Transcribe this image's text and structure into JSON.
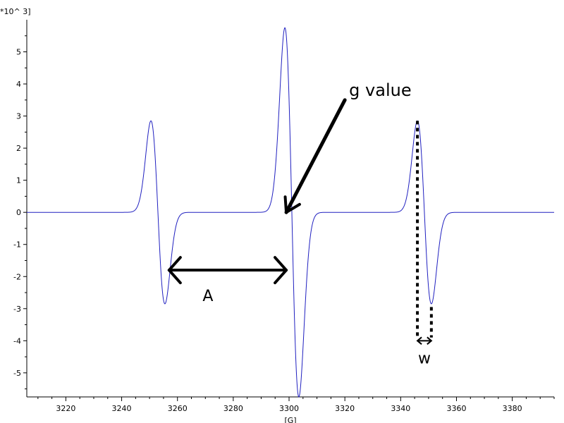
{
  "chart_data": {
    "type": "line",
    "title": "",
    "xlabel": "[G]",
    "ylabel": "",
    "y_multiplier_label": "*10^ 3]",
    "xlim": [
      3206,
      3395
    ],
    "ylim": [
      -5.75,
      6.0
    ],
    "x_ticks": [
      3220,
      3240,
      3260,
      3280,
      3300,
      3320,
      3340,
      3360,
      3380
    ],
    "y_ticks": [
      -5,
      -4,
      -3,
      -2,
      -1,
      0,
      1,
      2,
      3,
      4,
      5
    ],
    "grid": false,
    "line_color": "#2020c0",
    "series": [
      {
        "lines": [
          {
            "x0": 3253,
            "pp": 5.7
          },
          {
            "x0": 3301,
            "pp": 11.5
          },
          {
            "x0": 3348.5,
            "pp": 5.7
          }
        ],
        "linewidth_G": 2.5
      }
    ],
    "annotations": {
      "g_value_label": "g value",
      "hyperfine_label": "A",
      "width_label": "w",
      "g_arrow_tip": [
        3299,
        0.0
      ],
      "g_arrow_tail": [
        3320,
        3.5
      ],
      "A_arrow": {
        "x1": 3257,
        "x2": 3299,
        "y": -1.8
      },
      "w_marker": {
        "x1": 3346,
        "x2": 3351,
        "y_top": 2.85,
        "y_bottom_left": -3.9,
        "y_bottom_right": -3.0,
        "arrow_y": -4.0
      }
    }
  }
}
